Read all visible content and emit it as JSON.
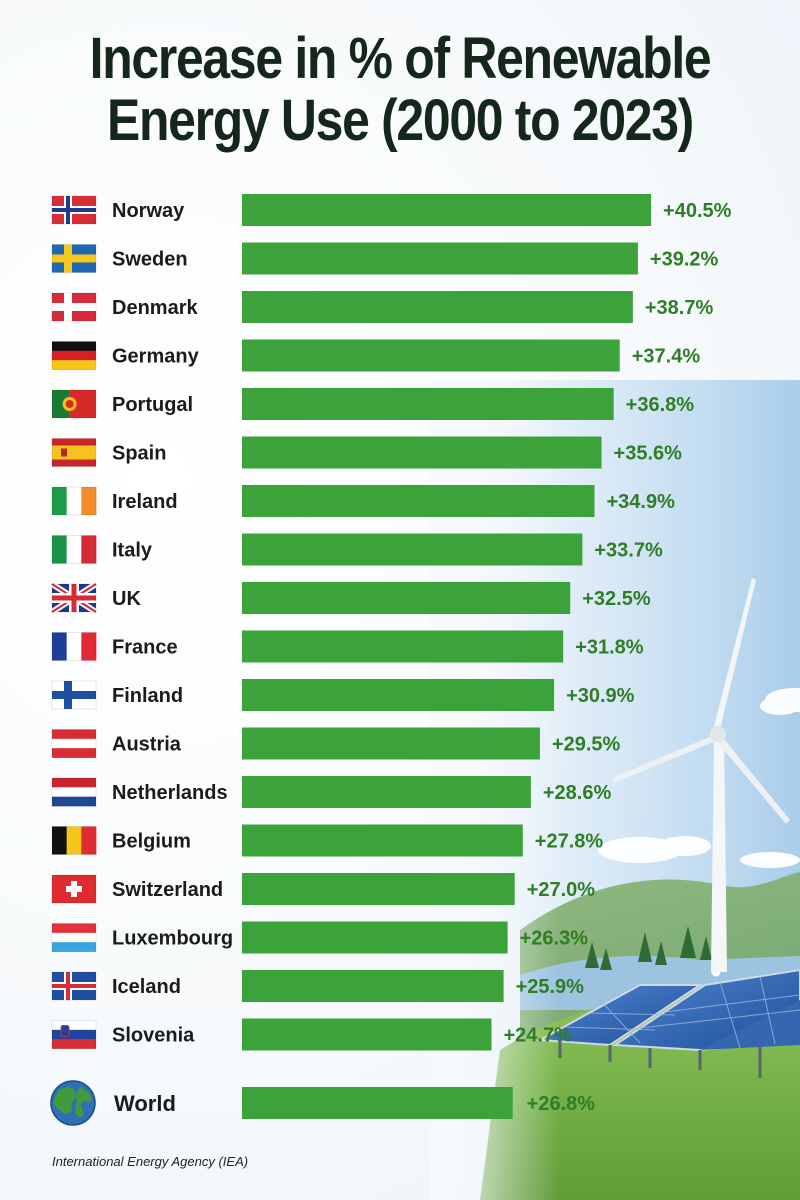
{
  "chart_data": {
    "type": "bar",
    "orientation": "horizontal",
    "title": "Increase in % of Renewable Energy Use (2000 to 2023)",
    "xlim": [
      0,
      42
    ],
    "grid": false,
    "bar_color": "#3ca23a",
    "value_color": "#2f7d24",
    "categories": [
      "Norway",
      "Sweden",
      "Denmark",
      "Germany",
      "Portugal",
      "Spain",
      "Ireland",
      "Italy",
      "UK",
      "France",
      "Finland",
      "Austria",
      "Netherlands",
      "Belgium",
      "Switzerland",
      "Luxembourg",
      "Iceland",
      "Slovenia"
    ],
    "values": [
      40.5,
      39.2,
      38.7,
      37.4,
      36.8,
      35.6,
      34.9,
      33.7,
      32.5,
      31.8,
      30.9,
      29.5,
      28.6,
      27.8,
      27.0,
      26.3,
      25.9,
      24.7
    ],
    "value_labels": [
      "+40.5%",
      "+39.2%",
      "+38.7%",
      "+37.4%",
      "+36.8%",
      "+35.6%",
      "+34.9%",
      "+33.7%",
      "+32.5%",
      "+31.8%",
      "+30.9%",
      "+29.5%",
      "+28.6%",
      "+27.8%",
      "+27.0%",
      "+26.3%",
      "+25.9%",
      "+24.7%"
    ],
    "flags": [
      "norway-flag",
      "sweden-flag",
      "denmark-flag",
      "germany-flag",
      "portugal-flag",
      "spain-flag",
      "ireland-flag",
      "italy-flag",
      "uk-flag",
      "france-flag",
      "finland-flag",
      "austria-flag",
      "netherlands-flag",
      "belgium-flag",
      "switzerland-flag",
      "luxembourg-flag",
      "iceland-flag",
      "slovenia-flag"
    ],
    "world": {
      "label": "World",
      "value": 26.8,
      "value_label": "+26.8%",
      "icon": "globe-icon"
    }
  },
  "source": "International Energy Agency (IEA)"
}
